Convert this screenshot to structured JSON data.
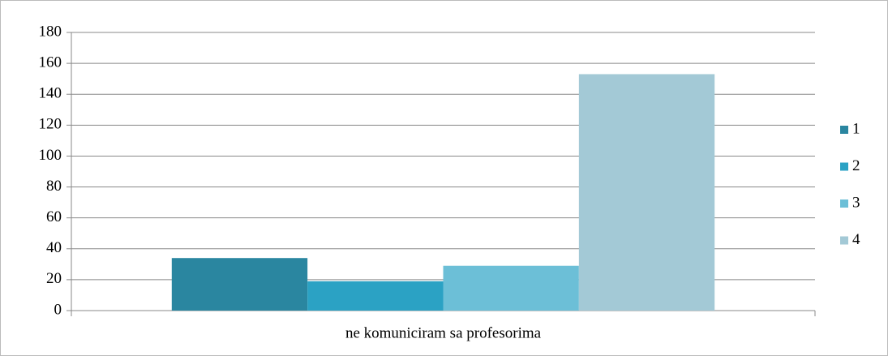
{
  "chart_data": {
    "type": "bar",
    "categories": [
      "ne komuniciram sa profesorima"
    ],
    "series": [
      {
        "name": "1",
        "color": "#2a86a0",
        "values": [
          34
        ]
      },
      {
        "name": "2",
        "color": "#2ba2c4",
        "values": [
          19
        ]
      },
      {
        "name": "3",
        "color": "#6cbfd7",
        "values": [
          29
        ]
      },
      {
        "name": "4",
        "color": "#a3c9d6",
        "values": [
          153
        ]
      }
    ],
    "ylim": [
      0,
      180
    ],
    "yticks": [
      0,
      20,
      40,
      60,
      80,
      100,
      120,
      140,
      160,
      180
    ],
    "grid": true,
    "legend": "right"
  }
}
